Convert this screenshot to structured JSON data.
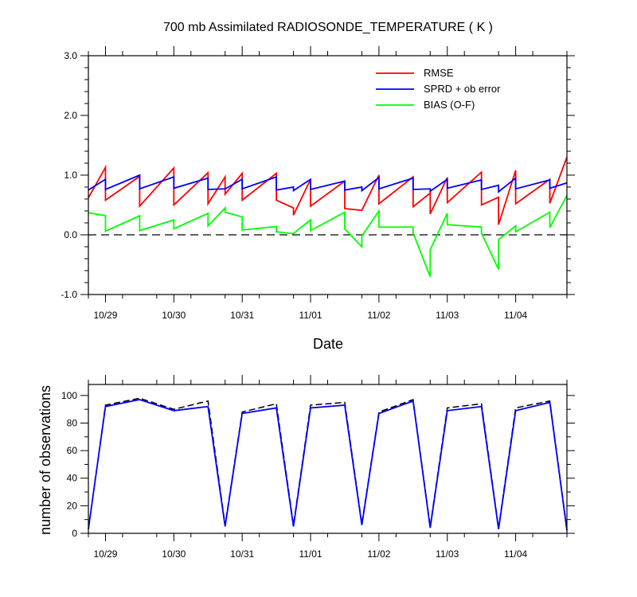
{
  "chart_data": [
    {
      "type": "line",
      "title": "700 mb Assimilated RADIOSONDE_TEMPERATURE ( K )",
      "xlabel": "Date",
      "ylabel": "",
      "xlim": [
        0,
        7.0
      ],
      "ylim": [
        -1.0,
        3.0
      ],
      "y_major_ticks": [
        -1.0,
        0.0,
        1.0,
        2.0,
        3.0
      ],
      "y_tick_labels": [
        "-1.0",
        "0.0",
        "1.0",
        "2.0",
        "3.0"
      ],
      "x_tick_positions": [
        0.25,
        1.25,
        2.25,
        3.25,
        4.25,
        5.25,
        6.25
      ],
      "x_tick_labels": [
        "10/29",
        "10/30",
        "10/31",
        "11/01",
        "11/02",
        "11/03",
        "11/04"
      ],
      "zero_line": "dashed",
      "grid": false,
      "legend": "top-right",
      "series": [
        {
          "name": "RMSE",
          "color": "#ff0000",
          "x": [
            0.0,
            0.25,
            0.25,
            0.75,
            0.75,
            1.25,
            1.25,
            1.75,
            1.75,
            2.0,
            2.0,
            2.25,
            2.25,
            2.75,
            2.75,
            3.0,
            3.0,
            3.25,
            3.25,
            3.75,
            3.75,
            4.0,
            4.0,
            4.25,
            4.25,
            4.75,
            4.75,
            5.0,
            5.0,
            5.25,
            5.25,
            5.75,
            5.75,
            6.0,
            6.0,
            6.25,
            6.25,
            6.75,
            6.75,
            7.0
          ],
          "y": [
            0.62,
            1.13,
            0.58,
            0.98,
            0.48,
            1.12,
            0.5,
            1.04,
            0.52,
            0.97,
            0.68,
            1.03,
            0.58,
            1.03,
            0.58,
            0.45,
            0.33,
            0.93,
            0.48,
            0.9,
            0.44,
            0.41,
            0.41,
            1.0,
            0.52,
            0.97,
            0.47,
            0.7,
            0.35,
            0.96,
            0.54,
            1.05,
            0.5,
            0.63,
            0.17,
            1.08,
            0.52,
            0.93,
            0.53,
            1.3
          ]
        },
        {
          "name": "SPRD + ob error",
          "color": "#0000ff",
          "x": [
            0.0,
            0.25,
            0.25,
            0.75,
            0.75,
            1.25,
            1.25,
            1.75,
            1.75,
            2.0,
            2.0,
            2.25,
            2.25,
            2.75,
            2.75,
            3.0,
            3.0,
            3.25,
            3.25,
            3.75,
            3.75,
            4.0,
            4.0,
            4.25,
            4.25,
            4.75,
            4.75,
            5.0,
            5.0,
            5.25,
            5.25,
            5.75,
            5.75,
            6.0,
            6.0,
            6.25,
            6.25,
            6.75,
            6.75,
            7.0
          ],
          "y": [
            0.75,
            0.93,
            0.76,
            1.0,
            0.77,
            0.97,
            0.78,
            0.95,
            0.76,
            0.77,
            0.77,
            0.93,
            0.77,
            0.97,
            0.75,
            0.8,
            0.74,
            0.93,
            0.76,
            0.9,
            0.75,
            0.8,
            0.74,
            0.96,
            0.77,
            0.95,
            0.76,
            0.77,
            0.73,
            0.93,
            0.78,
            0.92,
            0.76,
            0.83,
            0.72,
            0.95,
            0.77,
            0.92,
            0.78,
            0.87
          ]
        },
        {
          "name": "BIAS (O-F)",
          "color": "#00ff00",
          "x": [
            0.0,
            0.25,
            0.25,
            0.75,
            0.75,
            1.25,
            1.25,
            1.75,
            1.75,
            2.0,
            2.0,
            2.25,
            2.25,
            2.75,
            2.75,
            3.0,
            3.0,
            3.25,
            3.25,
            3.75,
            3.75,
            4.0,
            4.0,
            4.25,
            4.25,
            4.75,
            4.75,
            5.0,
            5.0,
            5.25,
            5.25,
            5.75,
            5.75,
            6.0,
            6.0,
            6.25,
            6.25,
            6.75,
            6.75,
            7.0
          ],
          "y": [
            0.37,
            0.32,
            0.06,
            0.32,
            0.07,
            0.25,
            0.1,
            0.36,
            0.15,
            0.45,
            0.38,
            0.3,
            0.08,
            0.14,
            0.05,
            0.02,
            0.02,
            0.25,
            0.07,
            0.38,
            0.1,
            -0.2,
            -0.02,
            0.4,
            0.13,
            0.13,
            0.03,
            -0.7,
            -0.25,
            0.36,
            0.17,
            0.13,
            0.03,
            -0.58,
            -0.08,
            0.15,
            0.05,
            0.38,
            0.12,
            0.66
          ]
        }
      ]
    },
    {
      "type": "line",
      "title": "",
      "xlabel": "",
      "ylabel": "number of observations",
      "xlim": [
        0,
        7.0
      ],
      "ylim": [
        0,
        108
      ],
      "y_major_ticks": [
        0,
        20,
        40,
        60,
        80,
        100
      ],
      "y_tick_labels": [
        "0",
        "20",
        "40",
        "60",
        "80",
        "100"
      ],
      "x_tick_positions": [
        0.25,
        1.25,
        2.25,
        3.25,
        4.25,
        5.25,
        6.25
      ],
      "x_tick_labels": [
        "10/29",
        "10/30",
        "10/31",
        "11/01",
        "11/02",
        "11/03",
        "11/04"
      ],
      "grid": false,
      "series": [
        {
          "style": "dashed",
          "color": "#000000",
          "x": [
            0.0,
            0.25,
            0.75,
            1.25,
            1.75,
            2.0,
            2.25,
            2.75,
            3.0,
            3.25,
            3.75,
            4.0,
            4.25,
            4.75,
            5.0,
            5.25,
            5.75,
            6.0,
            6.25,
            6.75,
            7.0
          ],
          "y": [
            3,
            93,
            98,
            90,
            96,
            6,
            88,
            94,
            6,
            93,
            95,
            7,
            88,
            97,
            5,
            91,
            94,
            4,
            91,
            96,
            3
          ]
        },
        {
          "style": "solid",
          "color": "#0000ff",
          "x": [
            0.0,
            0.25,
            0.75,
            1.25,
            1.75,
            2.0,
            2.25,
            2.75,
            3.0,
            3.25,
            3.75,
            4.0,
            4.25,
            4.75,
            5.0,
            5.25,
            5.75,
            6.0,
            6.25,
            6.75,
            7.0
          ],
          "y": [
            3,
            92,
            97,
            89,
            92,
            5,
            87,
            91,
            5,
            91,
            93,
            6,
            87,
            96,
            4,
            89,
            92,
            3,
            89,
            95,
            2
          ]
        }
      ]
    }
  ]
}
